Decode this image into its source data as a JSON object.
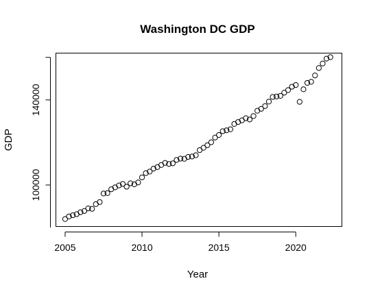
{
  "chart_data": {
    "type": "scatter",
    "title": "Washington DC GDP",
    "xlabel": "Year",
    "ylabel": "GDP",
    "xlim": [
      2004.4,
      2023.0
    ],
    "ylim": [
      80500,
      162000
    ],
    "xticks": [
      2005,
      2010,
      2015,
      2020
    ],
    "yticks": [
      100000,
      140000
    ],
    "x": [
      2005.0,
      2005.25,
      2005.5,
      2005.75,
      2006.0,
      2006.25,
      2006.5,
      2006.75,
      2007.0,
      2007.25,
      2007.5,
      2007.75,
      2008.0,
      2008.25,
      2008.5,
      2008.75,
      2009.0,
      2009.25,
      2009.5,
      2009.75,
      2010.0,
      2010.25,
      2010.5,
      2010.75,
      2011.0,
      2011.25,
      2011.5,
      2011.75,
      2012.0,
      2012.25,
      2012.5,
      2012.75,
      2013.0,
      2013.25,
      2013.5,
      2013.75,
      2014.0,
      2014.25,
      2014.5,
      2014.75,
      2015.0,
      2015.25,
      2015.5,
      2015.75,
      2016.0,
      2016.25,
      2016.5,
      2016.75,
      2017.0,
      2017.25,
      2017.5,
      2017.75,
      2018.0,
      2018.25,
      2018.5,
      2018.75,
      2019.0,
      2019.25,
      2019.5,
      2019.75,
      2020.0,
      2020.25,
      2020.5,
      2020.75,
      2021.0,
      2021.25,
      2021.5,
      2021.75,
      2022.0,
      2022.25
    ],
    "y": [
      84000,
      85200,
      85800,
      86300,
      87200,
      87800,
      89000,
      88800,
      91000,
      92000,
      96000,
      96200,
      98000,
      98900,
      99800,
      100500,
      99200,
      100800,
      100300,
      101200,
      103600,
      105600,
      106300,
      107700,
      108400,
      109400,
      110400,
      109900,
      110200,
      111800,
      112400,
      112300,
      113200,
      113400,
      114000,
      116400,
      117500,
      118700,
      120100,
      122300,
      123500,
      125300,
      125700,
      126200,
      128700,
      129600,
      130400,
      131400,
      130800,
      132400,
      134900,
      135800,
      137100,
      139200,
      141400,
      141600,
      141900,
      143400,
      144600,
      146200,
      147000,
      139100,
      145000,
      148000,
      148500,
      151500,
      155000,
      157100,
      159400,
      160100
    ]
  }
}
